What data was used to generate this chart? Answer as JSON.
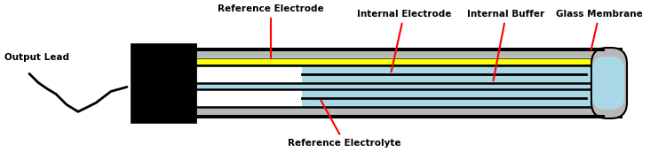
{
  "bg_color": "#ffffff",
  "black": "#000000",
  "gray": "#b8b8b8",
  "darkgray": "#808080",
  "yellow": "#ffff00",
  "lightblue": "#aad8e6",
  "white": "#ffffff",
  "red": "#ff0000",
  "labels": {
    "output_lead": "Output Lead",
    "ref_electrode": "Reference Electrode",
    "int_electrode": "Internal Electrode",
    "int_buffer": "Internal Buffer",
    "glass_membrane": "Glass Membrane",
    "ref_electrolyte": "Reference Electrolyte"
  },
  "fontsize": 7.5
}
